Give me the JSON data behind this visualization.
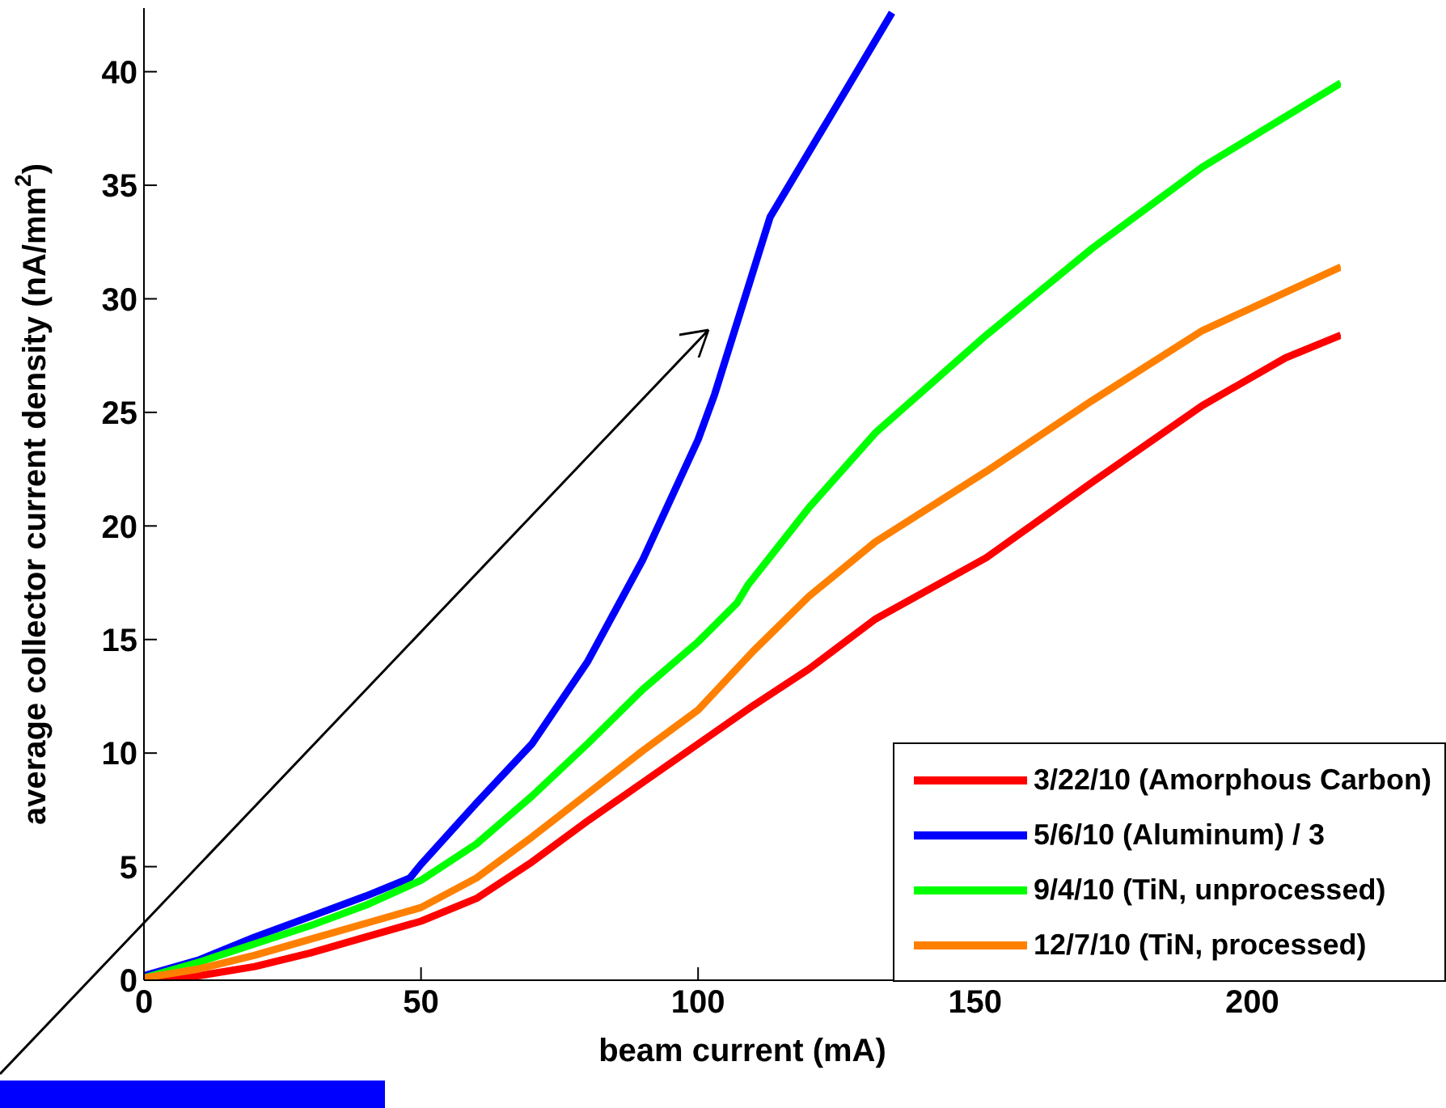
{
  "chart_data": {
    "type": "line",
    "xlabel": "beam current (mA)",
    "ylabel": "average collector current density (nA/mm$^{2}$)",
    "xlim": [
      0,
      216
    ],
    "xticks": [
      0,
      50,
      100,
      150,
      200
    ],
    "ylim": [
      0,
      42.8
    ],
    "yticks": [
      0,
      5,
      10,
      15,
      20,
      25,
      30,
      35,
      40
    ],
    "grid": false,
    "legend": "bottom right",
    "marker": "none",
    "line_style": "solid",
    "series": [
      {
        "name": "3/22/10 (Amorphous Carbon)",
        "color": "#ff0000",
        "x": [
          0,
          10,
          20,
          30,
          40,
          50,
          60,
          70,
          80,
          90,
          100,
          110,
          120,
          132,
          152,
          171,
          191,
          206,
          216
        ],
        "values": [
          0,
          0.2,
          0.6,
          1.2,
          1.9,
          2.6,
          3.6,
          5.2,
          7.0,
          8.7,
          10.4,
          12.1,
          13.7,
          15.9,
          18.6,
          21.9,
          25.3,
          27.4,
          28.4
        ]
      },
      {
        "name": "5/6/10 (Aluminum) / 3",
        "color": "#0000ff",
        "x": [
          0,
          10,
          20,
          30,
          40,
          48,
          50,
          60,
          70,
          80,
          90,
          100,
          103,
          113,
          125,
          135
        ],
        "values": [
          0.2,
          0.9,
          1.9,
          2.8,
          3.7,
          4.5,
          5.1,
          7.8,
          10.4,
          14.0,
          18.5,
          23.8,
          25.8,
          33.6,
          38.5,
          42.6
        ]
      },
      {
        "name": "9/4/10 (TiN, unprocessed)",
        "color": "#00ff00",
        "x": [
          0,
          10,
          20,
          30,
          40,
          50,
          60,
          70,
          80,
          90,
          100,
          107,
          109,
          120,
          132,
          152,
          171,
          191,
          216
        ],
        "values": [
          0.1,
          0.8,
          1.6,
          2.4,
          3.3,
          4.4,
          6.0,
          8.1,
          10.4,
          12.8,
          14.9,
          16.6,
          17.4,
          20.8,
          24.1,
          28.4,
          32.2,
          35.8,
          39.5
        ]
      },
      {
        "name": "12/7/10 (TiN, processed)",
        "color": "#ff8000",
        "x": [
          0,
          10,
          20,
          30,
          40,
          50,
          60,
          70,
          80,
          90,
          100,
          110,
          120,
          132,
          152,
          171,
          191,
          216
        ],
        "values": [
          0.1,
          0.5,
          1.1,
          1.8,
          2.5,
          3.2,
          4.5,
          6.3,
          8.2,
          10.1,
          11.9,
          14.5,
          16.9,
          19.3,
          22.4,
          25.5,
          28.6,
          31.4
        ]
      }
    ]
  }
}
